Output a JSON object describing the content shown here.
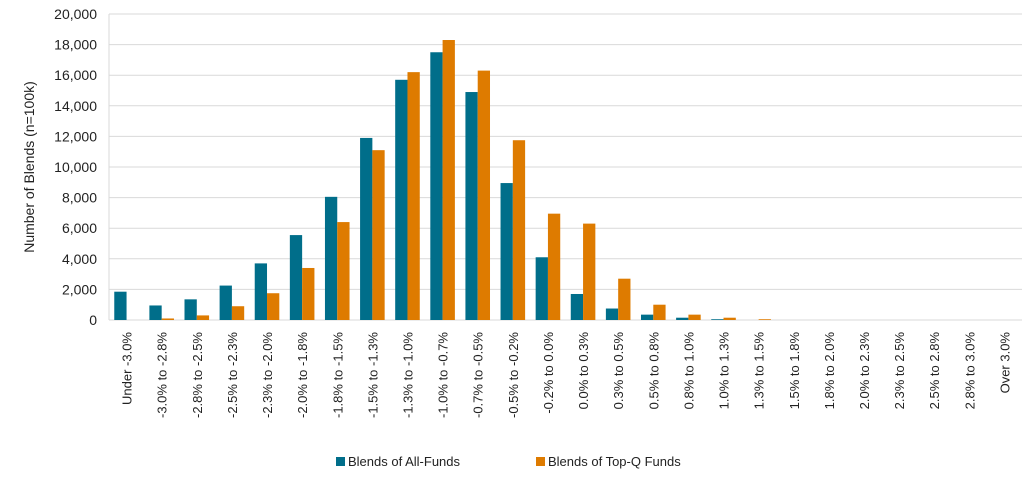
{
  "chart_data": {
    "type": "bar",
    "title": "",
    "xlabel": "",
    "ylabel": "Number of Blends (n=100k)",
    "ylim": [
      0,
      20000
    ],
    "yticks": [
      "0",
      "2,000",
      "4,000",
      "6,000",
      "8,000",
      "10,000",
      "12,000",
      "14,000",
      "16,000",
      "18,000",
      "20,000"
    ],
    "ytick_values": [
      0,
      2000,
      4000,
      6000,
      8000,
      10000,
      12000,
      14000,
      16000,
      18000,
      20000
    ],
    "grid": true,
    "legend_position": "bottom",
    "categories": [
      "Under -3.0%",
      "-3.0% to -2.8%",
      "-2.8% to -2.5%",
      "-2.5% to -2.3%",
      "-2.3% to -2.0%",
      "-2.0% to -1.8%",
      "-1.8% to -1.5%",
      "-1.5% to -1.3%",
      "-1.3% to -1.0%",
      "-1.0% to -0.7%",
      "-0.7% to -0.5%",
      "-0.5% to -0.2%",
      "-0.2% to 0.0%",
      "0.0% to 0.3%",
      "0.3% to 0.5%",
      "0.5% to 0.8%",
      "0.8% to 1.0%",
      "1.0% to 1.3%",
      "1.3% to 1.5%",
      "1.5% to 1.8%",
      "1.8% to 2.0%",
      "2.0% to 2.3%",
      "2.3% to 2.5%",
      "2.5% to 2.8%",
      "2.8% to 3.0%",
      "Over 3.0%"
    ],
    "series": [
      {
        "name": "Blends of All-Funds",
        "color": "#006e8a",
        "values": [
          1850,
          950,
          1350,
          2250,
          3700,
          5550,
          8050,
          11900,
          15700,
          17500,
          14900,
          8950,
          4100,
          1700,
          750,
          350,
          150,
          50,
          0,
          0,
          0,
          0,
          0,
          0,
          0,
          0
        ]
      },
      {
        "name": "Blends of Top-Q Funds",
        "color": "#de7b00",
        "values": [
          0,
          100,
          300,
          900,
          1750,
          3400,
          6400,
          11100,
          16200,
          18300,
          16300,
          11750,
          6950,
          6300,
          2700,
          1000,
          350,
          150,
          50,
          0,
          0,
          0,
          0,
          0,
          0,
          0
        ]
      }
    ]
  }
}
